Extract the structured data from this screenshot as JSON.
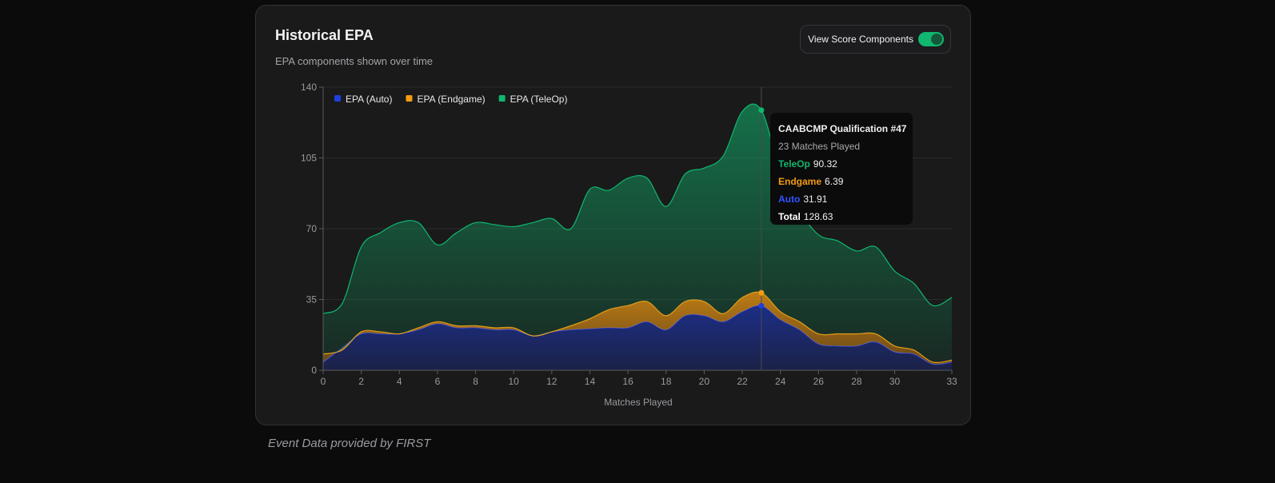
{
  "card": {
    "title": "Historical EPA",
    "subtitle": "EPA components shown over time",
    "toggle_label": "View Score Components",
    "toggle_on": true
  },
  "credit": "Event Data provided by FIRST",
  "colors": {
    "teleop": "#10b76e",
    "endgame": "#f39c12",
    "auto": "#1e3fe0",
    "grid": "#2a2a2c",
    "axis": "#9a9a9e"
  },
  "tooltip": {
    "title": "CAABCMP Qualification #47",
    "matches": "23 Matches Played",
    "teleop_label": "TeleOp",
    "teleop_value": "90.32",
    "endgame_label": "Endgame",
    "endgame_value": "6.39",
    "auto_label": "Auto",
    "auto_value": "31.91",
    "total_label": "Total",
    "total_value": "128.63",
    "match_index": 23
  },
  "chart_data": {
    "type": "area",
    "stacked": true,
    "xlabel": "Matches Played",
    "ylabel": "",
    "xlim": [
      0,
      33
    ],
    "ylim": [
      0,
      140
    ],
    "xticks": [
      "0",
      "2",
      "4",
      "6",
      "8",
      "10",
      "12",
      "14",
      "16",
      "18",
      "20",
      "22",
      "24",
      "26",
      "28",
      "30",
      "33"
    ],
    "yticks": [
      "0",
      "35",
      "70",
      "105",
      "140"
    ],
    "legend_position": "top-left",
    "grid": true,
    "x": [
      0,
      1,
      2,
      3,
      4,
      5,
      6,
      7,
      8,
      9,
      10,
      11,
      12,
      13,
      14,
      15,
      16,
      17,
      18,
      19,
      20,
      21,
      22,
      23,
      24,
      25,
      26,
      27,
      28,
      29,
      30,
      31,
      32,
      33
    ],
    "series": [
      {
        "name": "EPA (Auto)",
        "color_key": "auto",
        "values": [
          4,
          11,
          18,
          18,
          18,
          20,
          23,
          21,
          21,
          20,
          20,
          17,
          19,
          20,
          20.5,
          21,
          21,
          24,
          20,
          27,
          27,
          24,
          29,
          31.91,
          25,
          20,
          13,
          12,
          12,
          14,
          9,
          8,
          3,
          4
        ]
      },
      {
        "name": "EPA (Endgame)",
        "color_key": "endgame",
        "values": [
          4,
          -1,
          1,
          1,
          0,
          1,
          1,
          1,
          1,
          1,
          1,
          0,
          0,
          2,
          5,
          9,
          11,
          10,
          7,
          7,
          7,
          4,
          7,
          6.39,
          4,
          4,
          5,
          6,
          6,
          4,
          3,
          2,
          1,
          1
        ]
      },
      {
        "name": "EPA (TeleOp)",
        "color_key": "teleop",
        "values": [
          20,
          23,
          42,
          49,
          55,
          52,
          38,
          46,
          51,
          51,
          50,
          56,
          56,
          48,
          64,
          59,
          63,
          61,
          54,
          63,
          66,
          78,
          92,
          90.32,
          69,
          55,
          49,
          46,
          41,
          43,
          37,
          33,
          28,
          31
        ]
      }
    ]
  }
}
